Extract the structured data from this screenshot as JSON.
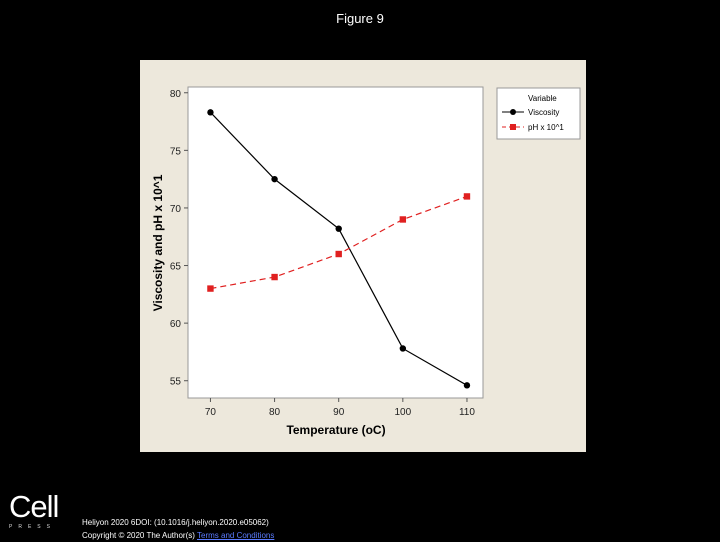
{
  "figure_title": "Figure 9",
  "logo": {
    "word": "Cell",
    "sub": "PRESS"
  },
  "citation": {
    "line1": "Heliyon 2020 6DOI: (10.1016/j.heliyon.2020.e05062)",
    "line2_prefix": "Copyright © 2020 The Author(s)",
    "line2_link": "Terms and Conditions"
  },
  "colors": {
    "viscosity": "#000000",
    "ph": "#e02020",
    "plot_bg": "#ffffff",
    "outer_bg": "#ede8dc"
  },
  "chart_data": {
    "type": "line",
    "xlabel": "Temperature (oC)",
    "ylabel": "Viscosity and pH x 10^1",
    "x": [
      70,
      80,
      90,
      100,
      110
    ],
    "xticks": [
      "70",
      "80",
      "90",
      "100",
      "110"
    ],
    "yticks": [
      "55",
      "60",
      "65",
      "70",
      "75",
      "80"
    ],
    "ylim": [
      53.5,
      80.5
    ],
    "xlim": [
      66.5,
      112.5
    ],
    "legend_title": "Variable",
    "legend_position": "top-right",
    "series": [
      {
        "name": "Viscosity",
        "values": [
          78.3,
          72.5,
          68.2,
          57.8,
          54.6
        ],
        "marker": "circle",
        "line": "solid"
      },
      {
        "name": "pH x 10^1",
        "values": [
          63.0,
          64.0,
          66.0,
          69.0,
          71.0
        ],
        "marker": "square",
        "line": "dashed"
      }
    ]
  }
}
